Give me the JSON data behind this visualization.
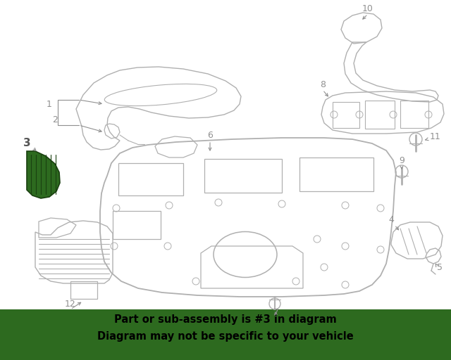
{
  "bg_color": "#ffffff",
  "banner_color": "#2d6a1f",
  "banner_text_line1": "Part or sub-assembly is #3 in diagram",
  "banner_text_line2": "Diagram may not be specific to your vehicle",
  "banner_text_color": "#000000",
  "diagram_line_color": "#b0b0b0",
  "highlight_color": "#2d6a1f",
  "label_color": "#909090",
  "figsize": [
    6.4,
    5.12
  ],
  "dpi": 100
}
